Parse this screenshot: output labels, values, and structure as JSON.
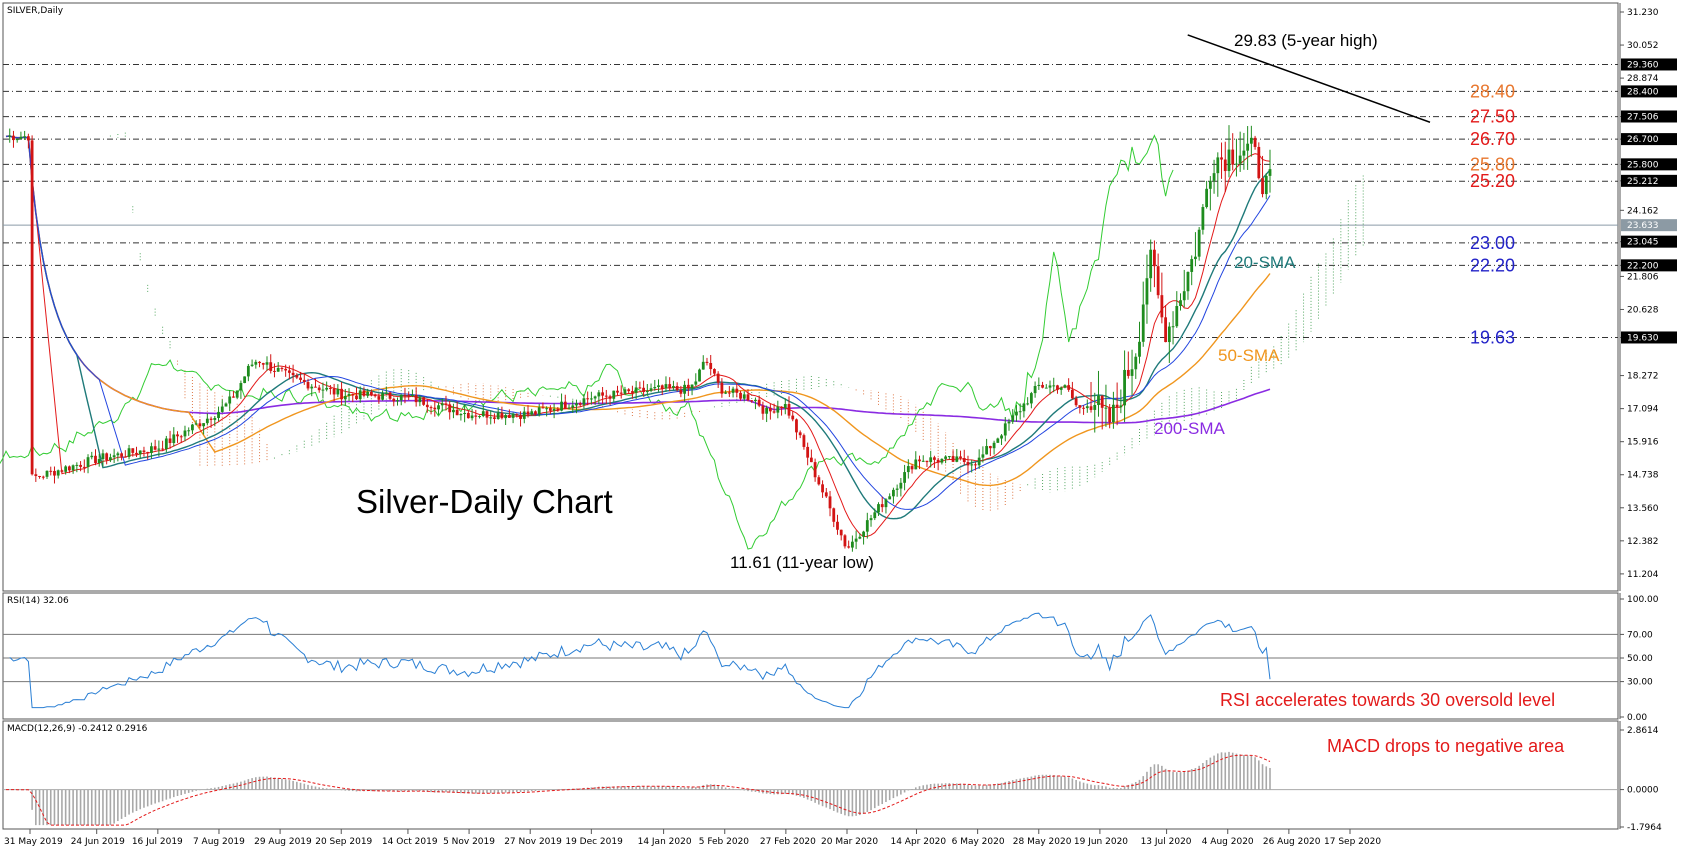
{
  "chart_data": [
    {
      "type": "candlestick",
      "header": "SILVER,Daily",
      "title": "Silver-Daily Chart",
      "ylim": [
        11.2,
        31.23
      ],
      "y_ticks": [
        "31.230",
        "30.052",
        "28.874",
        "27.506",
        "26.700",
        "25.800",
        "25.212",
        "24.162",
        "23.045",
        "22.200",
        "21.806",
        "20.628",
        "19.630",
        "18.272",
        "17.094",
        "15.916",
        "14.738",
        "13.560",
        "12.382",
        "11.204"
      ],
      "current_price": "23.633",
      "highlight_ticks": [
        "29.360",
        "28.400",
        "27.506",
        "26.700",
        "25.800",
        "25.212",
        "23.633",
        "23.045",
        "22.200",
        "19.630"
      ],
      "level_lines": [
        29.36,
        28.4,
        27.5,
        26.7,
        25.8,
        25.2,
        23.0,
        22.2,
        19.63
      ],
      "level_labels": [
        {
          "text": "28.40",
          "value": 28.4,
          "color": "#e8772e"
        },
        {
          "text": "27.50",
          "value": 27.5,
          "color": "#e31a1a"
        },
        {
          "text": "26.70",
          "value": 26.7,
          "color": "#e31a1a"
        },
        {
          "text": "25.80",
          "value": 25.8,
          "color": "#e8772e"
        },
        {
          "text": "25.20",
          "value": 25.2,
          "color": "#e31a1a"
        },
        {
          "text": "23.00",
          "value": 23.0,
          "color": "#2323c8"
        },
        {
          "text": "22.20",
          "value": 22.2,
          "color": "#2323c8"
        },
        {
          "text": "19.63",
          "value": 19.63,
          "color": "#2323c8"
        }
      ],
      "annotations": [
        {
          "text": "29.83 (5-year high)",
          "value": 29.83,
          "color": "#000000"
        },
        {
          "text": "11.61 (11-year low)",
          "value": 11.61,
          "color": "#000000"
        },
        {
          "text": "20-SMA",
          "color": "#1f7a7a"
        },
        {
          "text": "50-SMA",
          "color": "#f0961e"
        },
        {
          "text": "200-SMA",
          "color": "#8a2be2"
        }
      ],
      "x_labels": [
        "31 May 2019",
        "24 Jun 2019",
        "16 Jul 2019",
        "7 Aug 2019",
        "29 Aug 2019",
        "20 Sep 2019",
        "14 Oct 2019",
        "5 Nov 2019",
        "27 Nov 2019",
        "19 Dec 2019",
        "14 Jan 2020",
        "5 Feb 2020",
        "27 Feb 2020",
        "20 Mar 2020",
        "14 Apr 2020",
        "6 May 2020",
        "28 May 2020",
        "19 Jun 2020",
        "13 Jul 2020",
        "4 Aug 2020",
        "26 Aug 2020",
        "17 Sep 2020"
      ],
      "price_path": [
        [
          "31 May 2019",
          14.6
        ],
        [
          "24 Jun 2019",
          15.3
        ],
        [
          "16 Jul 2019",
          15.7
        ],
        [
          "7 Aug 2019",
          17.0
        ],
        [
          "29 Aug 2019",
          18.3
        ],
        [
          "20 Sep 2019",
          17.6
        ],
        [
          "14 Oct 2019",
          17.5
        ],
        [
          "5 Nov 2019",
          16.9
        ],
        [
          "27 Nov 2019",
          16.9
        ],
        [
          "19 Dec 2019",
          17.5
        ],
        [
          "14 Jan 2020",
          17.8
        ],
        [
          "5 Feb 2020",
          17.7
        ],
        [
          "27 Feb 2020",
          17.2
        ],
        [
          "20 Mar 2020",
          12.1
        ],
        [
          "14 Apr 2020",
          15.3
        ],
        [
          "6 May 2020",
          15.2
        ],
        [
          "28 May 2020",
          17.9
        ],
        [
          "19 Jun 2020",
          17.9
        ],
        [
          "13 Jul 2020",
          19.7
        ],
        [
          "4 Aug 2020",
          26.1
        ],
        [
          "26 Aug 2020",
          27.2
        ],
        [
          "17 Sep 2020",
          26.8
        ]
      ],
      "series": [
        {
          "name": "20-SMA",
          "color": "#1f7a7a"
        },
        {
          "name": "50-SMA",
          "color": "#f0961e"
        },
        {
          "name": "200-SMA",
          "color": "#8a2be2"
        }
      ],
      "trendline": {
        "from": [
          "4 Aug 2020",
          30.2
        ],
        "to": [
          "17 Sep 2020",
          27.3
        ]
      }
    },
    {
      "type": "line",
      "header": "RSI(14) 32.06",
      "ylim": [
        0,
        100
      ],
      "y_ticks": [
        "100.00",
        "70.00",
        "50.00",
        "30.00",
        "0.00"
      ],
      "levels": [
        70,
        50,
        30
      ],
      "last_value": 32.06,
      "annotation": {
        "text": "RSI accelerates towards 30 oversold level",
        "color": "#e31a1a"
      }
    },
    {
      "type": "bar",
      "header": "MACD(12,26,9) -0.2412 0.2916",
      "ylim": [
        -1.7964,
        2.8614
      ],
      "y_ticks": [
        "2.8614",
        "0.0000",
        "-1.7964"
      ],
      "macd": -0.2412,
      "signal": 0.2916,
      "annotation": {
        "text": "MACD drops to negative area",
        "color": "#e31a1a"
      }
    }
  ]
}
